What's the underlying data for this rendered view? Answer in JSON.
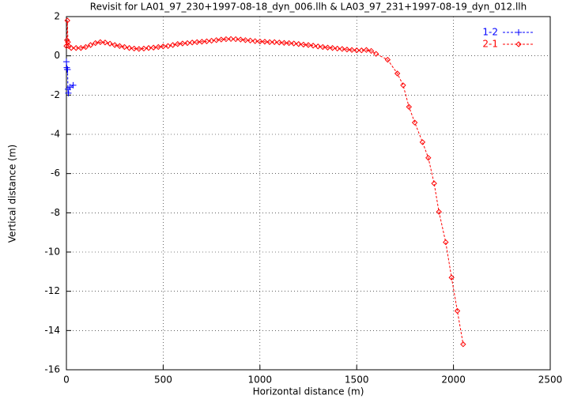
{
  "chart_data": {
    "type": "line",
    "title": "Revisit for LA01_97_230+1997-08-18_dyn_006.llh & LA03_97_231+1997-08-19_dyn_012.llh",
    "x_label": "Horizontal distance (m)",
    "y_label": "Vertical distance (m)",
    "xlim": [
      0,
      2500
    ],
    "ylim": [
      -16,
      2
    ],
    "xticks": [
      0,
      500,
      1000,
      1500,
      2000,
      2500
    ],
    "yticks": [
      2,
      0,
      -2,
      -4,
      -6,
      -8,
      -10,
      -12,
      -14,
      -16
    ],
    "grid": true,
    "legend": "top-right",
    "series": [
      {
        "name": "1-2",
        "color": "#0000ff",
        "marker": "plus",
        "x": [
          0,
          2,
          4,
          6,
          8,
          10,
          18,
          35
        ],
        "values": [
          -0.3,
          -0.6,
          -0.7,
          -0.7,
          -1.7,
          -1.9,
          -1.6,
          -1.5
        ]
      },
      {
        "name": "2-1",
        "color": "#ff0000",
        "marker": "diamond",
        "x": [
          0,
          3,
          5,
          8,
          12,
          25,
          50,
          75,
          100,
          125,
          150,
          175,
          200,
          225,
          250,
          275,
          300,
          325,
          350,
          375,
          400,
          425,
          450,
          475,
          500,
          525,
          550,
          575,
          600,
          625,
          650,
          675,
          700,
          725,
          750,
          775,
          800,
          825,
          850,
          875,
          900,
          925,
          950,
          975,
          1000,
          1025,
          1050,
          1075,
          1100,
          1125,
          1150,
          1175,
          1200,
          1225,
          1250,
          1275,
          1300,
          1325,
          1350,
          1375,
          1400,
          1425,
          1450,
          1475,
          1500,
          1525,
          1550,
          1575,
          1600,
          1660,
          1710,
          1740,
          1770,
          1800,
          1840,
          1870,
          1900,
          1925,
          1960,
          1990,
          2020,
          2050
        ],
        "values": [
          0.5,
          0.8,
          1.8,
          0.7,
          0.5,
          0.4,
          0.4,
          0.4,
          0.45,
          0.55,
          0.65,
          0.7,
          0.68,
          0.62,
          0.55,
          0.5,
          0.45,
          0.4,
          0.37,
          0.35,
          0.37,
          0.4,
          0.42,
          0.45,
          0.48,
          0.5,
          0.55,
          0.6,
          0.63,
          0.65,
          0.68,
          0.7,
          0.72,
          0.74,
          0.77,
          0.8,
          0.83,
          0.85,
          0.86,
          0.85,
          0.83,
          0.8,
          0.78,
          0.75,
          0.73,
          0.72,
          0.7,
          0.7,
          0.68,
          0.66,
          0.65,
          0.63,
          0.6,
          0.57,
          0.55,
          0.52,
          0.48,
          0.45,
          0.42,
          0.4,
          0.37,
          0.35,
          0.32,
          0.3,
          0.28,
          0.28,
          0.3,
          0.25,
          0.1,
          -0.2,
          -0.9,
          -1.5,
          -2.6,
          -3.4,
          -4.4,
          -5.2,
          -6.5,
          -7.95,
          -9.5,
          -11.3,
          -13,
          -14.7
        ]
      }
    ]
  }
}
